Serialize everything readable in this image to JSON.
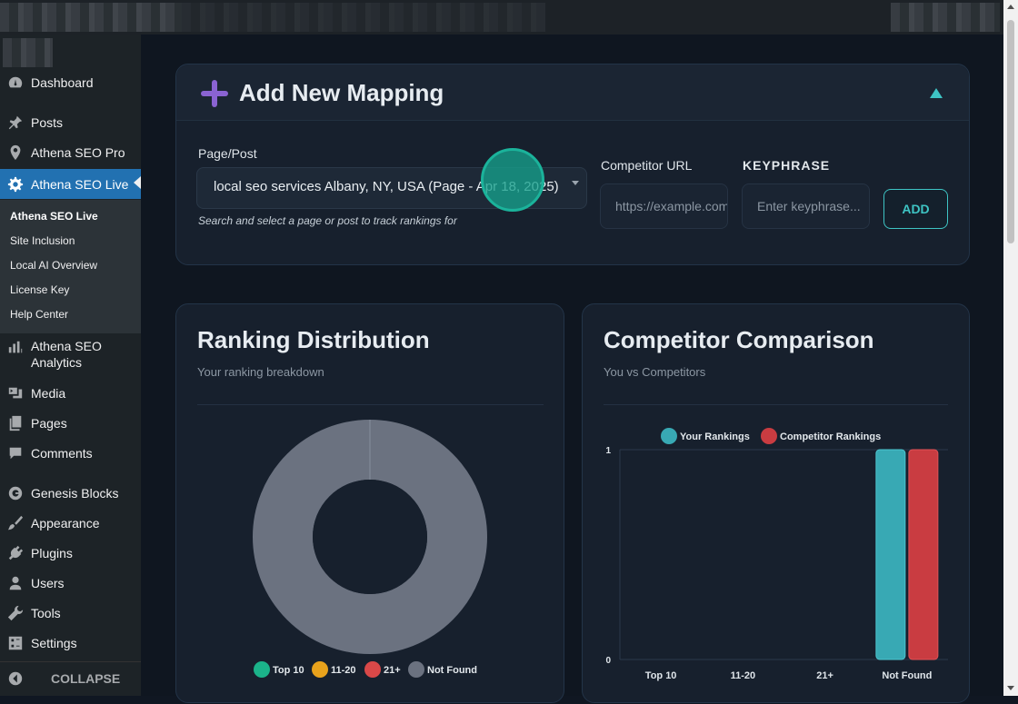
{
  "sidebar": {
    "items": [
      {
        "label": "Dashboard",
        "icon": "dashboard-icon"
      },
      {
        "label": "Posts",
        "icon": "pin-icon"
      },
      {
        "label": "Athena SEO Pro",
        "icon": "location-icon"
      },
      {
        "label": "Athena SEO Live",
        "icon": "gear-icon"
      },
      {
        "label": "Athena SEO Analytics",
        "icon": "bar-chart-icon"
      },
      {
        "label": "Media",
        "icon": "media-icon"
      },
      {
        "label": "Pages",
        "icon": "pages-icon"
      },
      {
        "label": "Comments",
        "icon": "comment-icon"
      },
      {
        "label": "Genesis Blocks",
        "icon": "genesis-icon"
      },
      {
        "label": "Appearance",
        "icon": "brush-icon"
      },
      {
        "label": "Plugins",
        "icon": "plug-icon"
      },
      {
        "label": "Users",
        "icon": "user-icon"
      },
      {
        "label": "Tools",
        "icon": "wrench-icon"
      },
      {
        "label": "Settings",
        "icon": "settings-icon"
      }
    ],
    "submenu": [
      "Athena SEO Live",
      "Site Inclusion",
      "Local AI Overview",
      "License Key",
      "Help Center"
    ],
    "collapse_label": "COLLAPSE"
  },
  "mapping": {
    "title": "Add New Mapping",
    "page_label": "Page/Post",
    "page_value": "local seo services Albany, NY, USA (Page - Apr 18, 2025)",
    "page_hint": "Search and select a page or post to track rankings for",
    "competitor_label": "Competitor URL",
    "competitor_placeholder": "https://example.com",
    "keyphrase_label": "KEYPHRASE",
    "keyphrase_placeholder": "Enter keyphrase...",
    "add_label": "ADD"
  },
  "distribution": {
    "title": "Ranking Distribution",
    "subtitle": "Your ranking breakdown"
  },
  "comparison": {
    "title": "Competitor Comparison",
    "subtitle": "You vs Competitors"
  },
  "colors": {
    "accent": "#3ec4c4",
    "purple": "#8a63d2",
    "wp_active": "#2271b1",
    "top10": "#1bb38a",
    "r11_20": "#e8a21c",
    "r21": "#d94848",
    "not_found": "#6b7280",
    "your_rankings": "#38a9b4",
    "competitor_rankings": "#c93c41"
  },
  "chart_data": [
    {
      "type": "pie",
      "categories": [
        "Top 10",
        "11-20",
        "21+",
        "Not Found"
      ],
      "values": [
        0,
        0,
        0,
        1
      ],
      "colors": [
        "#1bb38a",
        "#e8a21c",
        "#d94848",
        "#6b7280"
      ],
      "legend": "bottom"
    },
    {
      "type": "bar",
      "categories": [
        "Top 10",
        "11-20",
        "21+",
        "Not Found"
      ],
      "series": [
        {
          "name": "Your Rankings",
          "values": [
            0,
            0,
            0,
            1
          ],
          "color": "#38a9b4"
        },
        {
          "name": "Competitor Rankings",
          "values": [
            0,
            0,
            0,
            1
          ],
          "color": "#c93c41"
        }
      ],
      "ylim": [
        0,
        1
      ],
      "yticks": [
        "0",
        "1"
      ],
      "legend": "top",
      "grid": true
    }
  ]
}
